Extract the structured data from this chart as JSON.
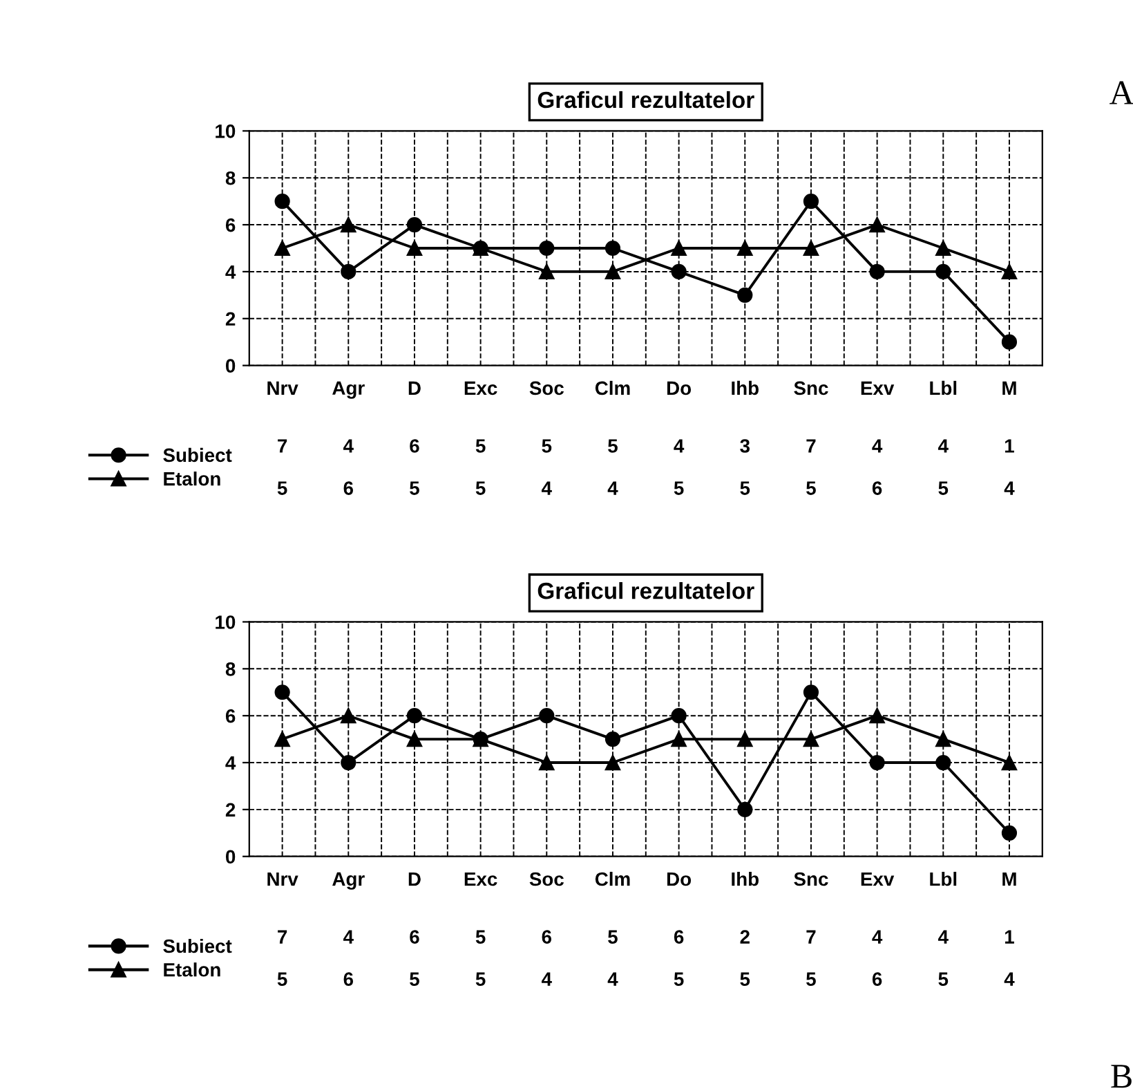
{
  "chart_data": [
    {
      "type": "line",
      "title": "Graficul rezultatelor",
      "categories": [
        "Nrv",
        "Agr",
        "D",
        "Exc",
        "Soc",
        "Clm",
        "Do",
        "Ihb",
        "Snc",
        "Exv",
        "Lbl",
        "M"
      ],
      "series": [
        {
          "name": "Subiect",
          "color": "#000000",
          "marker": "circle",
          "values": [
            7,
            4,
            6,
            5,
            5,
            5,
            4,
            3,
            7,
            4,
            4,
            1
          ]
        },
        {
          "name": "Etalon",
          "color": "#000000",
          "marker": "triangle",
          "values": [
            5,
            6,
            5,
            5,
            4,
            4,
            5,
            5,
            5,
            6,
            5,
            4
          ]
        }
      ],
      "ylim": [
        0,
        10
      ],
      "yticks": [
        0,
        2,
        4,
        6,
        8,
        10
      ],
      "grid": true,
      "line_style": "solid",
      "data_labels": true,
      "legend": "bottom left",
      "annotations": [
        "A"
      ]
    },
    {
      "type": "line",
      "title": "Graficul rezultatelor",
      "categories": [
        "Nrv",
        "Agr",
        "D",
        "Exc",
        "Soc",
        "Clm",
        "Do",
        "Ihb",
        "Snc",
        "Exv",
        "Lbl",
        "M"
      ],
      "series": [
        {
          "name": "Subiect",
          "color": "#000000",
          "marker": "circle",
          "values": [
            7,
            4,
            6,
            5,
            6,
            5,
            6,
            2,
            7,
            4,
            4,
            1
          ]
        },
        {
          "name": "Etalon",
          "color": "#000000",
          "marker": "triangle",
          "values": [
            5,
            6,
            5,
            5,
            4,
            4,
            5,
            5,
            5,
            6,
            5,
            4
          ]
        }
      ],
      "ylim": [
        0,
        10
      ],
      "yticks": [
        0,
        2,
        4,
        6,
        8,
        10
      ],
      "grid": true,
      "line_style": "solid",
      "data_labels": true,
      "legend": "bottom left",
      "annotations": [
        "B"
      ]
    }
  ]
}
